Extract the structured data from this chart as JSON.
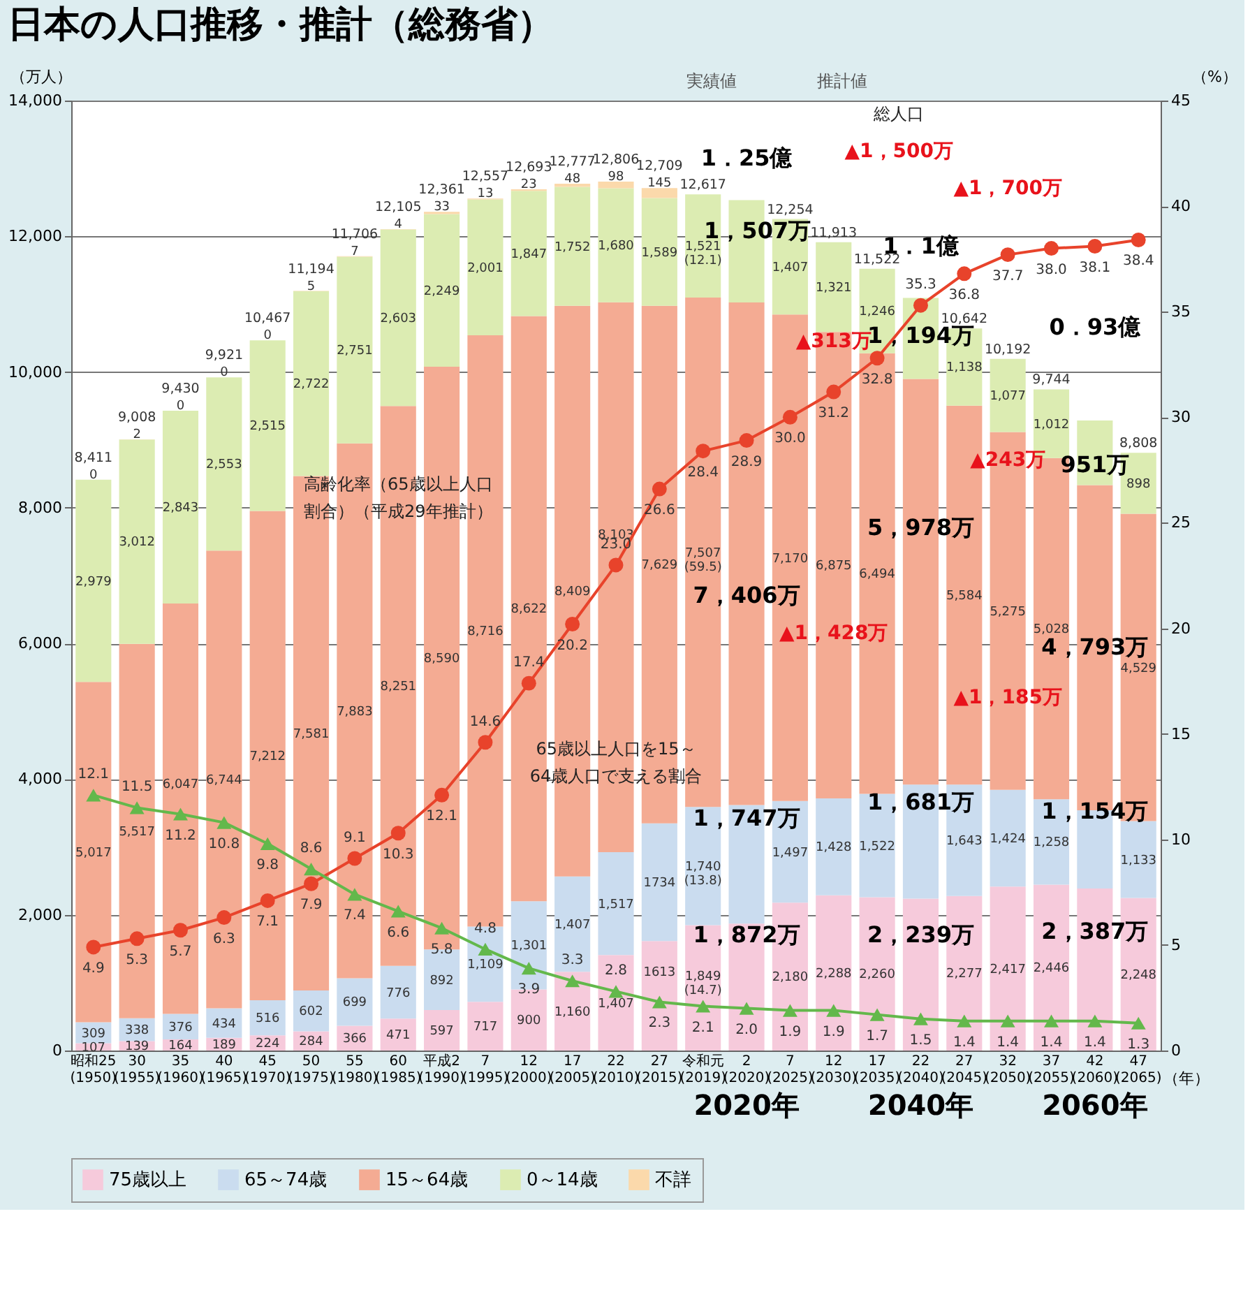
{
  "chart_data": {
    "type": "bar",
    "stacked": true,
    "title": "日本の人口推移・推計（総務省）",
    "ylabel": "（万人）",
    "y2label": "（%）",
    "xlabel": "（年）",
    "categories": [
      "昭和25\n(1950)",
      "30\n(1955)",
      "35\n(1960)",
      "40\n(1965)",
      "45\n(1970)",
      "50\n(1975)",
      "55\n(1980)",
      "60\n(1985)",
      "平成2\n(1990)",
      "7\n(1995)",
      "12\n(2000)",
      "17\n(2005)",
      "22\n(2010)",
      "27\n(2015)",
      "令和元\n(2019)",
      "2\n(2020)",
      "7\n(2025)",
      "12\n(2030)",
      "17\n(2035)",
      "22\n(2040)",
      "27\n(2045)",
      "32\n(2050)",
      "37\n(2055)",
      "42\n(2060)",
      "47\n(2065)"
    ],
    "ylim": [
      0,
      14000
    ],
    "yticks": [
      0,
      {
        "value": 2000,
        "label": "2,000"
      },
      {
        "value": 4000,
        "label": "4,000"
      },
      {
        "value": 6000,
        "label": "6,000"
      },
      {
        "value": 8000,
        "label": "8,000"
      },
      {
        "value": 10000,
        "label": "10,000"
      },
      {
        "value": 12000,
        "label": "12,000"
      },
      {
        "value": 14000,
        "label": "14,000"
      }
    ],
    "y2lim": [
      0,
      45
    ],
    "y2ticks": [
      0,
      5,
      10,
      15,
      20,
      25,
      30,
      35,
      40,
      45
    ],
    "grid": "y",
    "legend": "bottom",
    "series": [
      {
        "name": "75歳以上",
        "color": "#f6cadb",
        "values": [
          107,
          139,
          164,
          189,
          224,
          284,
          366,
          471,
          597,
          717,
          900,
          1160,
          1407,
          1613,
          1849,
          1872,
          2180,
          2288,
          2260,
          2239,
          2277,
          2417,
          2446,
          2387,
          2248
        ],
        "value_labels": [
          "107",
          "139",
          "164",
          "189",
          "224",
          "284",
          "366",
          "471",
          "597",
          "717",
          "900",
          "1,160",
          "1,407",
          "1613",
          "1,849\n(14.7)",
          null,
          "2,180",
          "2,288",
          "2,260",
          null,
          "2,277",
          "2,417",
          "2,446",
          null,
          "2,248"
        ]
      },
      {
        "name": "65～74歳",
        "color": "#cadcef",
        "values": [
          309,
          338,
          376,
          434,
          516,
          602,
          699,
          776,
          892,
          1109,
          1301,
          1407,
          1517,
          1734,
          1740,
          1747,
          1497,
          1428,
          1522,
          1681,
          1643,
          1424,
          1258,
          1154,
          1133
        ],
        "value_labels": [
          "309",
          "338",
          "376",
          "434",
          "516",
          "602",
          "699",
          "776",
          "892",
          "1,109",
          "1,301",
          "1,407",
          "1,517",
          "1734",
          "1,740\n(13.8)",
          null,
          "1,497",
          "1,428",
          "1,522",
          null,
          "1,643",
          "1,424",
          "1,258",
          null,
          "1,133"
        ]
      },
      {
        "name": "15～64歳",
        "color": "#f4ab93",
        "values": [
          5017,
          5517,
          6047,
          6744,
          7212,
          7581,
          7883,
          8251,
          8590,
          8716,
          8622,
          8409,
          8103,
          7629,
          7507,
          7406,
          7170,
          6875,
          6494,
          5978,
          5584,
          5275,
          5028,
          4793,
          4529
        ],
        "value_labels": [
          "5,017",
          "5,517",
          "6,047",
          "6,744",
          "7,212",
          "7,581",
          "7,883",
          "8,251",
          "8,590",
          "8,716",
          "8,622",
          "8,409",
          "8,103",
          "7,629",
          "7,507\n(59.5)",
          null,
          "7,170",
          "6,875",
          "6,494",
          null,
          "5,584",
          "5,275",
          "5,028",
          null,
          "4,529"
        ]
      },
      {
        "name": "0～14歳",
        "color": "#dcecb2",
        "values": [
          2979,
          3012,
          2843,
          2553,
          2515,
          2722,
          2751,
          2603,
          2249,
          2001,
          1847,
          1752,
          1680,
          1589,
          1521,
          1507,
          1407,
          1321,
          1246,
          1194,
          1138,
          1077,
          1012,
          951,
          898
        ],
        "value_labels": [
          "2,979",
          "3,012",
          "2,843",
          "2,553",
          "2,515",
          "2,722",
          "2,751",
          "2,603",
          "2,249",
          "2,001",
          "1,847",
          "1,752",
          "1,680",
          "1,589",
          "1,521\n(12.1)",
          null,
          "1,407",
          "1,321",
          "1,246",
          null,
          "1,138",
          "1,077",
          "1,012",
          null,
          "898"
        ]
      },
      {
        "name": "不詳",
        "color": "#fbd9ab",
        "values": [
          0,
          2,
          0,
          0,
          0,
          5,
          7,
          4,
          33,
          13,
          23,
          48,
          98,
          145,
          null,
          null,
          null,
          null,
          null,
          null,
          null,
          null,
          null,
          null,
          null
        ],
        "value_labels": [
          "0",
          "2",
          "0",
          "0",
          "0",
          "5",
          "7",
          "4",
          "33",
          "13",
          "23",
          "48",
          "98",
          "145",
          null,
          null,
          null,
          null,
          null,
          null,
          null,
          null,
          null,
          null,
          null
        ]
      },
      {
        "type": "line",
        "axis": "y2",
        "color": "#e8432b",
        "marker": "circle",
        "values": [
          4.9,
          5.3,
          5.7,
          6.3,
          7.1,
          7.9,
          9.1,
          10.3,
          12.1,
          14.6,
          17.4,
          20.2,
          23.0,
          26.6,
          28.4,
          28.9,
          30.0,
          31.2,
          32.8,
          35.3,
          36.8,
          37.7,
          38.0,
          38.1,
          38.4
        ],
        "value_labels": [
          "4.9",
          "5.3",
          "5.7",
          "6.3",
          "7.1",
          "7.9",
          "9.1",
          "10.3",
          "12.1",
          "14.6",
          "17.4",
          "20.2",
          "23.0",
          "26.6",
          "28.4",
          "28.9",
          "30.0",
          "31.2",
          "32.8",
          "35.3",
          "36.8",
          "37.7",
          "38.0",
          "38.1",
          "38.4"
        ]
      },
      {
        "type": "line",
        "axis": "y2",
        "color": "#63b84b",
        "marker": "triangle",
        "values": [
          12.1,
          11.5,
          11.2,
          10.8,
          9.8,
          8.6,
          7.4,
          6.6,
          5.8,
          4.8,
          3.9,
          3.3,
          2.8,
          2.3,
          2.1,
          2.0,
          1.9,
          1.9,
          1.7,
          1.5,
          1.4,
          1.4,
          1.4,
          1.4,
          1.3
        ],
        "value_labels": [
          "12.1",
          "11.5",
          "11.2",
          "10.8",
          "9.8",
          "8.6",
          "7.4",
          "6.6",
          "5.8",
          "4.8",
          "3.9",
          "3.3",
          "2.8",
          "2.3",
          "2.1",
          "2.0",
          "1.9",
          "1.9",
          "1.7",
          "1.5",
          "1.4",
          "1.4",
          "1.4",
          "1.4",
          "1.3"
        ]
      }
    ],
    "totals": [
      "8,411",
      "9,008",
      "9,430",
      "9,921",
      "10,467",
      "11,194",
      "11,706",
      "12,105",
      "12,361",
      "12,557",
      "12,693",
      "12,777",
      "12,806",
      "12,709",
      "12,617",
      null,
      "12,254",
      "11,913",
      "11,522",
      null,
      "10,642",
      "10,192",
      "9,744",
      null,
      "8,808"
    ],
    "annotations": [
      "1．25億",
      "総人口",
      "▲1，500万",
      "1，507万",
      "7，406万",
      "1，747万",
      "1，872万",
      "▲313万",
      "▲1，428万",
      "1．1億",
      "1，194万",
      "5，978万",
      "1，681万",
      "2，239万",
      "▲1，700万",
      "▲243万",
      "▲1，185万",
      "0．93億",
      "951万",
      "4，793万",
      "1，154万",
      "2，387万",
      "高齢化率（65歳以上人口",
      "割合）（平成29年推計）",
      "65歳以上人口を15～",
      "64歳人口で支える割合",
      "2020年",
      "2040年",
      "2060年",
      "実績値",
      "推計値"
    ]
  }
}
